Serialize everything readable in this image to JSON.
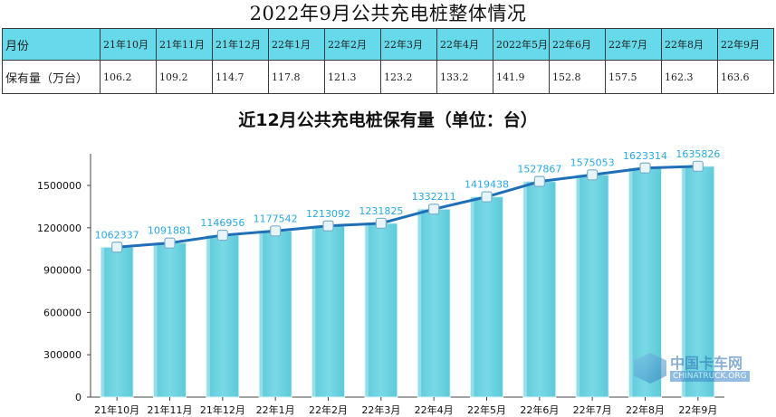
{
  "title": "2022年9月公共充电桩整体情况",
  "table": {
    "header_label": "月份",
    "value_label": "保有量（万台）",
    "months": [
      "21年10月",
      "21年11月",
      "21年12月",
      "22年1月",
      "22年2月",
      "22年3月",
      "22年4月",
      "2022年5月",
      "22年6月",
      "22年7月",
      "22年8月",
      "22年9月"
    ],
    "values": [
      "106.2",
      "109.2",
      "114.7",
      "117.8",
      "121.3",
      "123.2",
      "133.2",
      "141.9",
      "152.8",
      "157.5",
      "162.3",
      "163.6"
    ]
  },
  "watermark": {
    "cn": "中国卡车网",
    "en": "CHINATRUCK.ORG"
  },
  "colors": {
    "header_bg": "#66d9ea",
    "bar": "#7ad9e6",
    "line": "#1f6fb8",
    "label": "#29a9e1"
  },
  "chart_data": {
    "type": "bar",
    "title": "近12月公共充电桩保有量（单位：台）",
    "xlabel": "",
    "ylabel": "",
    "categories": [
      "21年10月",
      "21年11月",
      "21年12月",
      "22年1月",
      "22年2月",
      "22年3月",
      "22年4月",
      "22年5月",
      "22年6月",
      "22年7月",
      "22年8月",
      "22年9月"
    ],
    "values": [
      1062337,
      1091881,
      1146956,
      1177542,
      1213092,
      1231825,
      1332211,
      1419438,
      1527867,
      1575053,
      1623314,
      1635826
    ],
    "overlay_line": true,
    "yticks": [
      0,
      300000,
      600000,
      900000,
      1200000,
      1500000
    ],
    "ylim": [
      0,
      1700000
    ],
    "grid": false,
    "legend": "none"
  }
}
